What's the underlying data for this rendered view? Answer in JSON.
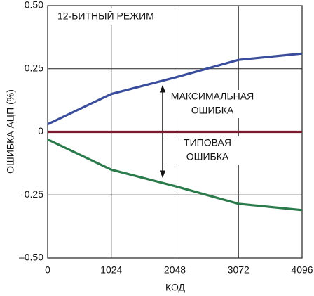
{
  "chart_data": {
    "type": "line",
    "x_label": "КОД",
    "y_label": "ОШИБКА АЦП (%)",
    "x": [
      0,
      1024,
      2048,
      3072,
      4096
    ],
    "series": [
      {
        "color": "#3a4d9c",
        "values": [
          0.03,
          0.15,
          0.215,
          0.285,
          0.31
        ]
      },
      {
        "color": "#7a1c30",
        "values": [
          0,
          0,
          0,
          0,
          0
        ]
      },
      {
        "color": "#2b7a4b",
        "values": [
          -0.03,
          -0.15,
          -0.215,
          -0.285,
          -0.31
        ]
      }
    ],
    "xlim": [
      0,
      4096
    ],
    "xticks": [
      0,
      1024,
      2048,
      3072,
      4096
    ],
    "ylim": [
      -0.5,
      0.5
    ],
    "yticks": [
      {
        "value": -0.5,
        "label": "–0.50"
      },
      {
        "value": -0.25,
        "label": "–0.25"
      },
      0,
      0.25,
      {
        "value": 0.5,
        "label": "0.50"
      }
    ],
    "grid": true,
    "annotations": [
      {
        "lines": [
          "12-БИТНЫЙ РЕЖИМ"
        ]
      },
      {
        "lines": [
          "МАКСИМАЛЬНАЯ",
          "ОШИБКА"
        ]
      },
      {
        "lines": [
          "ТИПОВАЯ",
          "ОШИБКА"
        ]
      }
    ]
  }
}
